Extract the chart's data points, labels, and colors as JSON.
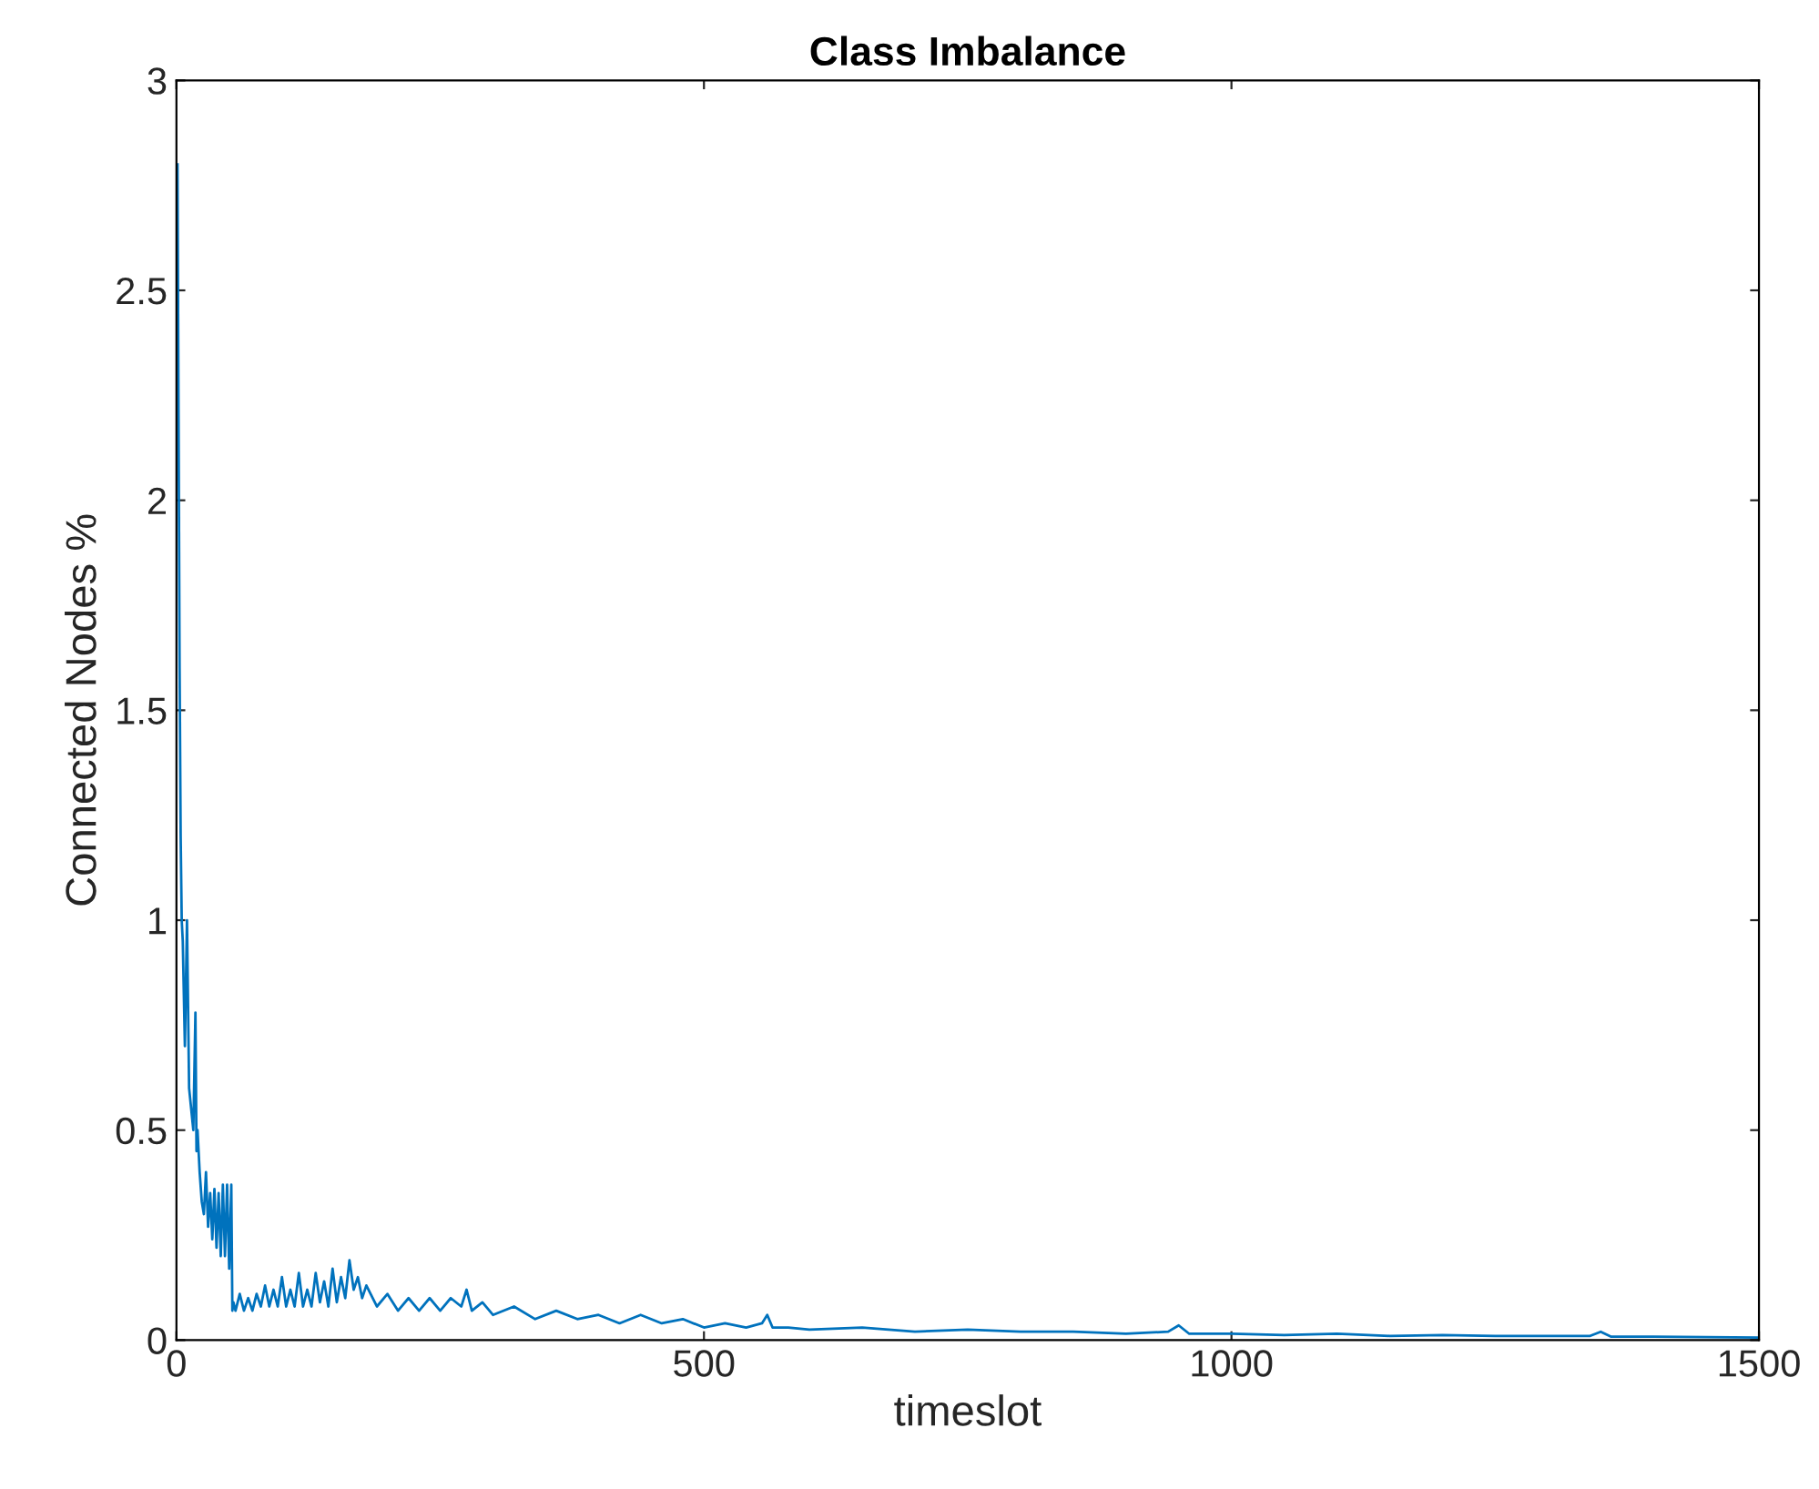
{
  "chart_data": {
    "type": "line",
    "title": "Class Imbalance",
    "xlabel": "timeslot",
    "ylabel": "Connected Nodes %",
    "xlim": [
      0,
      1500
    ],
    "ylim": [
      0,
      3
    ],
    "xticks": [
      0,
      500,
      1000,
      1500
    ],
    "yticks": [
      0,
      0.5,
      1,
      1.5,
      2,
      2.5,
      3
    ],
    "grid": false,
    "legend": false,
    "line_style": "solid",
    "marker": "none",
    "series": [
      {
        "color": "#0072bd",
        "x": [
          1,
          2,
          3,
          4,
          5,
          6,
          8,
          10,
          12,
          14,
          16,
          18,
          19,
          20,
          22,
          24,
          26,
          28,
          30,
          32,
          34,
          36,
          38,
          40,
          42,
          44,
          46,
          48,
          50,
          52,
          53,
          54,
          56,
          60,
          64,
          68,
          72,
          76,
          80,
          84,
          88,
          92,
          96,
          100,
          104,
          108,
          112,
          116,
          120,
          124,
          128,
          132,
          136,
          140,
          144,
          148,
          152,
          156,
          160,
          164,
          168,
          172,
          176,
          180,
          190,
          200,
          210,
          220,
          230,
          240,
          250,
          260,
          270,
          275,
          280,
          290,
          300,
          320,
          340,
          360,
          380,
          400,
          420,
          440,
          460,
          480,
          500,
          520,
          540,
          555,
          560,
          565,
          580,
          600,
          650,
          700,
          750,
          800,
          850,
          900,
          940,
          950,
          960,
          1000,
          1050,
          1100,
          1150,
          1200,
          1250,
          1300,
          1340,
          1350,
          1360,
          1400,
          1450,
          1500
        ],
        "values": [
          2.8,
          2.2,
          1.6,
          1.2,
          1.0,
          0.95,
          0.7,
          1.0,
          0.6,
          0.55,
          0.5,
          0.78,
          0.45,
          0.5,
          0.4,
          0.33,
          0.3,
          0.4,
          0.27,
          0.35,
          0.24,
          0.36,
          0.22,
          0.35,
          0.2,
          0.37,
          0.2,
          0.37,
          0.17,
          0.37,
          0.07,
          0.09,
          0.07,
          0.11,
          0.07,
          0.1,
          0.07,
          0.11,
          0.08,
          0.13,
          0.08,
          0.12,
          0.08,
          0.15,
          0.08,
          0.12,
          0.08,
          0.16,
          0.08,
          0.12,
          0.08,
          0.16,
          0.09,
          0.14,
          0.08,
          0.17,
          0.09,
          0.15,
          0.1,
          0.19,
          0.12,
          0.15,
          0.1,
          0.13,
          0.08,
          0.11,
          0.07,
          0.1,
          0.07,
          0.1,
          0.07,
          0.1,
          0.08,
          0.12,
          0.07,
          0.09,
          0.06,
          0.08,
          0.05,
          0.07,
          0.05,
          0.06,
          0.04,
          0.06,
          0.04,
          0.05,
          0.03,
          0.04,
          0.03,
          0.04,
          0.06,
          0.03,
          0.03,
          0.025,
          0.03,
          0.02,
          0.025,
          0.02,
          0.02,
          0.015,
          0.02,
          0.035,
          0.015,
          0.015,
          0.012,
          0.015,
          0.01,
          0.012,
          0.01,
          0.01,
          0.01,
          0.02,
          0.008,
          0.008,
          0.007,
          0.006
        ]
      }
    ]
  }
}
